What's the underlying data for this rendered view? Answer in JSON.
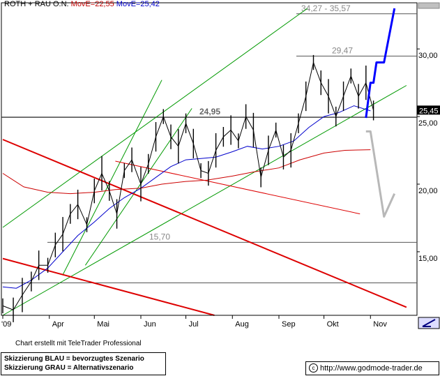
{
  "header": {
    "title": "ROTH + RAU O.N.",
    "ma1": "MovE=22,55",
    "ma2": "MovE=25,42"
  },
  "footer": {
    "credit": "Chart erstellt mit TeleTrader Professional",
    "note_blue": "Skizzierung BLAU = bevorzugtes Szenario",
    "note_grey": "Skizzierung GRAU = Alternativszenario",
    "copyright_icon": "copyright-icon",
    "url": "http://www.godmode-trader.de"
  },
  "colors": {
    "price": "#000000",
    "ma_short": "#0000cc",
    "ma_long": "#cc0000",
    "trend_green": "#009900",
    "trend_red": "#dd0000",
    "scenario_blue": "#0000ff",
    "scenario_grey": "#b8b8b8",
    "level_line": "#555555"
  },
  "chart_data": {
    "type": "line",
    "title": "ROTH + RAU O.N.",
    "xlabel": "",
    "ylabel": "",
    "x_ticks": [
      "'09",
      "Apr",
      "Mai",
      "Jun",
      "Jul",
      "Aug",
      "Sep",
      "Okt",
      "Nov"
    ],
    "y_ticks": [
      15,
      20,
      25,
      30
    ],
    "y_tick_labels": [
      "15,00",
      "20,00",
      "25,00",
      "30,00"
    ],
    "ylim": [
      10.3,
      33.0
    ],
    "last_price_label": "25,45",
    "series": [
      {
        "name": "ROTH + RAU O.N.",
        "kind": "price",
        "points": [
          [
            "2009-03-01",
            11.0
          ],
          [
            "2009-03-08",
            10.7
          ],
          [
            "2009-03-14",
            11.8
          ],
          [
            "2009-03-20",
            12.8
          ],
          [
            "2009-03-25",
            14.0
          ],
          [
            "2009-03-31",
            14.0
          ],
          [
            "2009-04-05",
            15.5
          ],
          [
            "2009-04-10",
            16.3
          ],
          [
            "2009-04-15",
            17.8
          ],
          [
            "2009-04-20",
            18.5
          ],
          [
            "2009-04-26",
            17.0
          ],
          [
            "2009-05-01",
            19.5
          ],
          [
            "2009-05-06",
            20.8
          ],
          [
            "2009-05-11",
            19.5
          ],
          [
            "2009-05-16",
            17.8
          ],
          [
            "2009-05-21",
            21.0
          ],
          [
            "2009-05-26",
            21.8
          ],
          [
            "2009-06-01",
            20.0
          ],
          [
            "2009-06-06",
            21.5
          ],
          [
            "2009-06-11",
            23.5
          ],
          [
            "2009-06-16",
            25.0
          ],
          [
            "2009-06-21",
            23.5
          ],
          [
            "2009-06-26",
            22.8
          ],
          [
            "2009-07-01",
            24.5
          ],
          [
            "2009-07-06",
            23.0
          ],
          [
            "2009-07-11",
            21.0
          ],
          [
            "2009-07-16",
            20.8
          ],
          [
            "2009-07-21",
            22.5
          ],
          [
            "2009-07-26",
            23.5
          ],
          [
            "2009-07-31",
            24.0
          ],
          [
            "2009-08-05",
            23.2
          ],
          [
            "2009-08-10",
            25.0
          ],
          [
            "2009-08-15",
            24.0
          ],
          [
            "2009-08-20",
            20.5
          ],
          [
            "2009-08-25",
            22.5
          ],
          [
            "2009-08-30",
            24.0
          ],
          [
            "2009-09-04",
            22.0
          ],
          [
            "2009-09-09",
            22.5
          ],
          [
            "2009-09-14",
            24.5
          ],
          [
            "2009-09-19",
            26.5
          ],
          [
            "2009-09-24",
            29.0
          ],
          [
            "2009-09-29",
            27.5
          ],
          [
            "2009-10-04",
            26.5
          ],
          [
            "2009-10-09",
            25.0
          ],
          [
            "2009-10-14",
            26.5
          ],
          [
            "2009-10-19",
            28.0
          ],
          [
            "2009-10-24",
            26.5
          ],
          [
            "2009-10-29",
            27.5
          ],
          [
            "2009-11-03",
            25.45
          ]
        ]
      },
      {
        "name": "MovE=25,42",
        "kind": "ma",
        "points": [
          [
            "2009-03-01",
            12.4
          ],
          [
            "2009-03-10",
            12.3
          ],
          [
            "2009-03-20",
            12.9
          ],
          [
            "2009-03-31",
            13.8
          ],
          [
            "2009-04-10",
            15.0
          ],
          [
            "2009-04-20",
            16.2
          ],
          [
            "2009-05-01",
            17.2
          ],
          [
            "2009-05-11",
            18.2
          ],
          [
            "2009-05-21",
            19.0
          ],
          [
            "2009-06-01",
            19.7
          ],
          [
            "2009-06-11",
            20.5
          ],
          [
            "2009-06-21",
            21.3
          ],
          [
            "2009-07-01",
            21.8
          ],
          [
            "2009-07-11",
            21.9
          ],
          [
            "2009-07-21",
            22.0
          ],
          [
            "2009-08-01",
            22.4
          ],
          [
            "2009-08-11",
            22.8
          ],
          [
            "2009-08-21",
            22.6
          ],
          [
            "2009-09-01",
            22.8
          ],
          [
            "2009-09-11",
            23.2
          ],
          [
            "2009-09-21",
            24.2
          ],
          [
            "2009-10-01",
            25.0
          ],
          [
            "2009-10-11",
            25.3
          ],
          [
            "2009-10-21",
            25.8
          ],
          [
            "2009-11-01",
            25.42
          ]
        ]
      },
      {
        "name": "MovE=22,55",
        "kind": "ma",
        "points": [
          [
            "2009-03-01",
            20.8
          ],
          [
            "2009-03-15",
            19.8
          ],
          [
            "2009-03-31",
            19.4
          ],
          [
            "2009-04-15",
            19.3
          ],
          [
            "2009-05-01",
            19.4
          ],
          [
            "2009-05-15",
            19.6
          ],
          [
            "2009-06-01",
            19.7
          ],
          [
            "2009-06-15",
            20.0
          ],
          [
            "2009-07-01",
            20.2
          ],
          [
            "2009-07-15",
            20.3
          ],
          [
            "2009-08-01",
            20.6
          ],
          [
            "2009-08-15",
            20.9
          ],
          [
            "2009-09-01",
            21.2
          ],
          [
            "2009-09-15",
            21.8
          ],
          [
            "2009-10-01",
            22.3
          ],
          [
            "2009-10-15",
            22.5
          ],
          [
            "2009-11-01",
            22.55
          ]
        ]
      }
    ],
    "levels": [
      {
        "value": 32.6,
        "label": "34,27 - 35,57"
      },
      {
        "value": 29.47,
        "label": "29,47"
      },
      {
        "value": 24.95,
        "label": "24,95"
      },
      {
        "value": 15.7,
        "label": "15,70"
      },
      {
        "value": 12.7,
        "label": ""
      }
    ],
    "trendlines": [
      {
        "color": "green",
        "points": [
          [
            "2009-03-01",
            16.8
          ],
          [
            "2009-09-20",
            33.0
          ]
        ]
      },
      {
        "color": "green",
        "points": [
          [
            "2009-03-01",
            10.3
          ],
          [
            "2009-11-25",
            27.3
          ]
        ]
      },
      {
        "color": "green",
        "points": [
          [
            "2009-04-10",
            13.3
          ],
          [
            "2009-06-15",
            27.7
          ]
        ]
      },
      {
        "color": "green",
        "points": [
          [
            "2009-04-25",
            14.0
          ],
          [
            "2009-07-05",
            25.6
          ]
        ]
      },
      {
        "color": "red",
        "points": [
          [
            "2009-03-01",
            23.3
          ],
          [
            "2009-11-25",
            10.9
          ]
        ]
      },
      {
        "color": "red",
        "points": [
          [
            "2009-03-01",
            14.5
          ],
          [
            "2009-07-20",
            10.3
          ]
        ]
      },
      {
        "color": "red",
        "points": [
          [
            "2009-05-15",
            21.7
          ],
          [
            "2009-10-25",
            17.8
          ]
        ]
      }
    ],
    "scenarios": [
      {
        "name": "Skizzierung BLAU",
        "color": "blue",
        "points": [
          [
            "2009-10-29",
            24.9
          ],
          [
            "2009-11-01",
            27.5
          ],
          [
            "2009-11-03",
            27.5
          ],
          [
            "2009-11-05",
            29.0
          ],
          [
            "2009-11-10",
            29.0
          ],
          [
            "2009-11-17",
            33.0
          ]
        ]
      },
      {
        "name": "Skizzierung GRAU",
        "color": "grey",
        "points": [
          [
            "2009-10-29",
            23.9
          ],
          [
            "2009-11-01",
            23.9
          ],
          [
            "2009-11-10",
            17.6
          ],
          [
            "2009-11-17",
            19.3
          ]
        ]
      }
    ],
    "grid": false,
    "legend": "top-left"
  }
}
